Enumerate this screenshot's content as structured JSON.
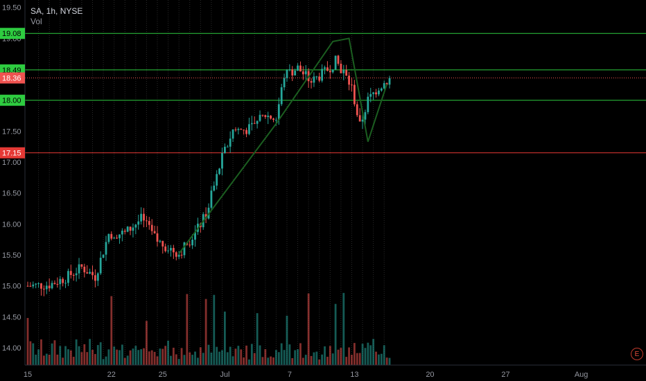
{
  "header": {
    "symbol_line": "SA, 1h, NYSE",
    "volume_label": "Vol"
  },
  "earnings_marker": "E",
  "chart_data": {
    "type": "candlestick",
    "y_ticks": [
      "19.50",
      "19.00",
      "17.50",
      "17.00",
      "16.50",
      "16.00",
      "15.50",
      "15.00",
      "14.50",
      "14.00"
    ],
    "y_tick_values": [
      19.5,
      19.0,
      17.5,
      17.0,
      16.5,
      16.0,
      15.5,
      15.0,
      14.5,
      14.0
    ],
    "ylim": [
      13.72,
      19.62
    ],
    "x_ticks": [
      "15",
      "22",
      "25",
      "Jul",
      "7",
      "13",
      "20",
      "27",
      "Aug"
    ],
    "x_tick_index": [
      0,
      31,
      50,
      73,
      97,
      121,
      149,
      177,
      205
    ],
    "horizontal_levels": [
      {
        "label": "19.08",
        "value": 19.08,
        "color": "#2ecc40"
      },
      {
        "label": "18.49",
        "value": 18.49,
        "color": "#2ecc40"
      },
      {
        "label": "18.00",
        "value": 18.0,
        "color": "#2ecc40"
      },
      {
        "label": "17.15",
        "value": 17.15,
        "color": "#e53935"
      }
    ],
    "last_price": {
      "label": "18.36",
      "value": 18.36,
      "color": "#ef5350"
    },
    "trendlines": [
      {
        "points": [
          [
            56,
            15.52
          ],
          [
            92,
            17.62
          ],
          [
            113,
            18.95
          ],
          [
            119,
            19.0
          ],
          [
            126,
            17.33
          ],
          [
            133,
            18.26
          ]
        ]
      }
    ],
    "key_closes": [
      [
        0,
        15.0
      ],
      [
        8,
        15.02
      ],
      [
        14,
        15.13
      ],
      [
        20,
        15.3
      ],
      [
        25,
        15.15
      ],
      [
        30,
        15.84
      ],
      [
        36,
        15.85
      ],
      [
        42,
        16.08
      ],
      [
        48,
        15.72
      ],
      [
        52,
        15.62
      ],
      [
        56,
        15.52
      ],
      [
        62,
        15.85
      ],
      [
        66,
        16.15
      ],
      [
        72,
        17.07
      ],
      [
        76,
        17.52
      ],
      [
        82,
        17.53
      ],
      [
        88,
        17.76
      ],
      [
        92,
        17.7
      ],
      [
        95,
        18.4
      ],
      [
        100,
        18.52
      ],
      [
        105,
        18.3
      ],
      [
        110,
        18.45
      ],
      [
        114,
        18.63
      ],
      [
        117,
        18.45
      ],
      [
        120,
        18.2
      ],
      [
        123,
        17.58
      ],
      [
        126,
        18.0
      ],
      [
        130,
        18.22
      ],
      [
        134,
        18.34
      ]
    ],
    "volume_max_index": 96
  }
}
